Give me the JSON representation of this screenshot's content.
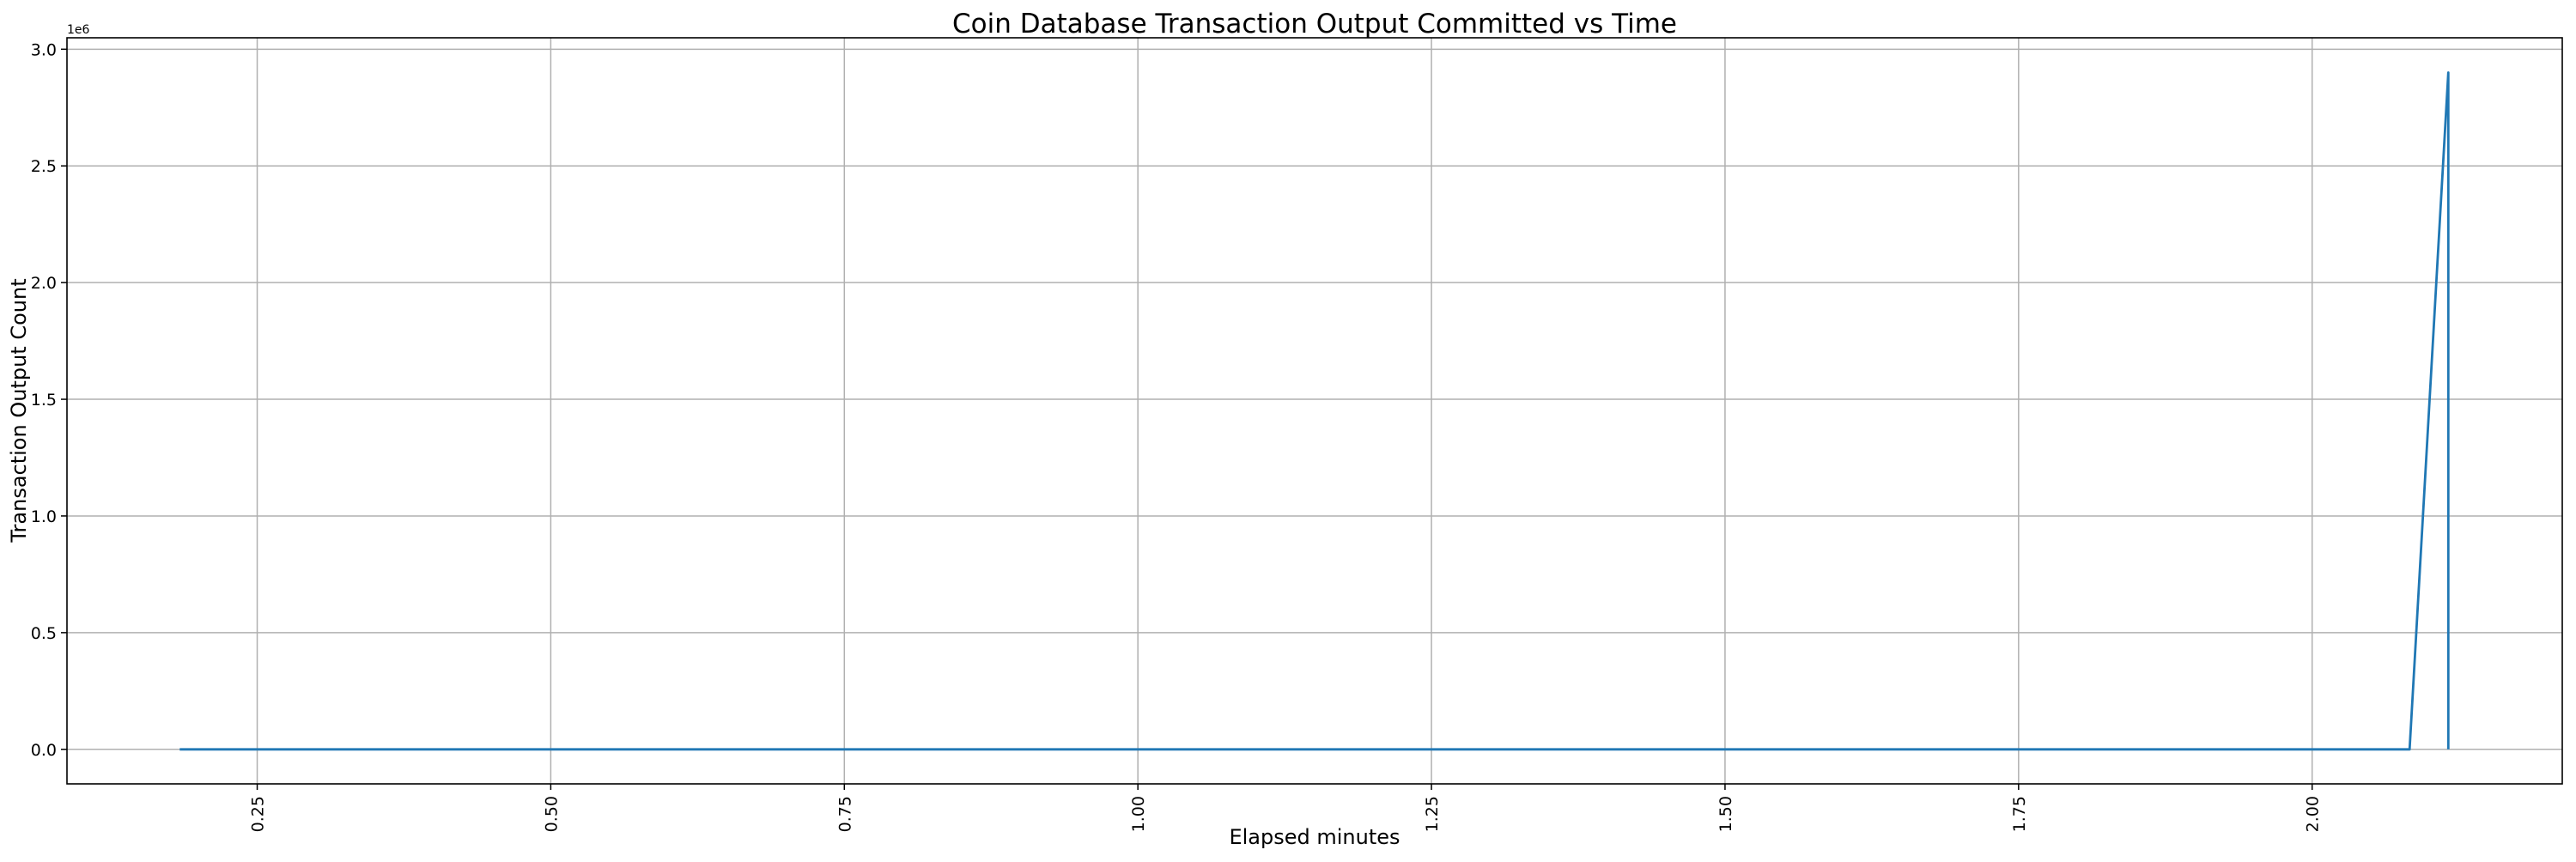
{
  "chart_data": {
    "type": "line",
    "title": "Coin Database Transaction Output Committed vs Time",
    "xlabel": "Elapsed minutes",
    "ylabel": "Transaction Output Count",
    "y_offset_label": "1e6",
    "xlim": [
      0.088,
      2.213
    ],
    "ylim": [
      -148000,
      3049000
    ],
    "xticks": [
      0.25,
      0.5,
      0.75,
      1.0,
      1.25,
      1.5,
      1.75,
      2.0
    ],
    "xtick_labels": [
      "0.25",
      "0.50",
      "0.75",
      "1.00",
      "1.25",
      "1.50",
      "1.75",
      "2.00"
    ],
    "xtick_rotation": 90,
    "yticks": [
      0,
      500000,
      1000000,
      1500000,
      2000000,
      2500000,
      3000000
    ],
    "ytick_labels": [
      "0.0",
      "0.5",
      "1.0",
      "1.5",
      "2.0",
      "2.5",
      "3.0"
    ],
    "grid": true,
    "series": [
      {
        "color": "#1f77b4",
        "x": [
          0.184,
          2.083,
          2.116,
          2.116
        ],
        "y": [
          0,
          0,
          2900000,
          0
        ]
      }
    ]
  }
}
